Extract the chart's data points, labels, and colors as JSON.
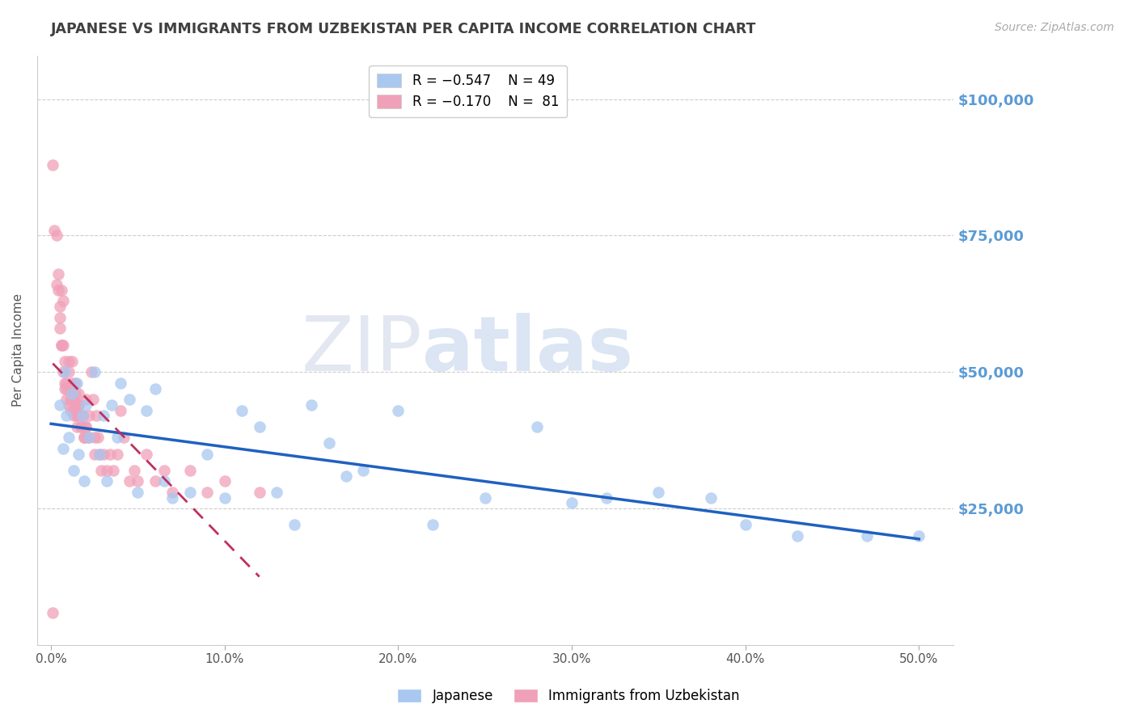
{
  "title": "JAPANESE VS IMMIGRANTS FROM UZBEKISTAN PER CAPITA INCOME CORRELATION CHART",
  "source": "Source: ZipAtlas.com",
  "ylabel": "Per Capita Income",
  "xlabel_ticks": [
    "0.0%",
    "10.0%",
    "20.0%",
    "30.0%",
    "40.0%",
    "50.0%"
  ],
  "xlabel_vals": [
    0.0,
    0.1,
    0.2,
    0.3,
    0.4,
    0.5
  ],
  "ylabel_ticks": [
    "$25,000",
    "$50,000",
    "$75,000",
    "$100,000"
  ],
  "ylabel_vals": [
    25000,
    50000,
    75000,
    100000
  ],
  "ylim": [
    0,
    108000
  ],
  "xlim": [
    -0.008,
    0.52
  ],
  "watermark_zip": "ZIP",
  "watermark_atlas": "atlas",
  "blue_color": "#A8C8F0",
  "pink_color": "#F0A0B8",
  "blue_line_color": "#2060C0",
  "pink_line_color": "#C03060",
  "background_color": "#FFFFFF",
  "grid_color": "#CCCCCC",
  "right_label_color": "#5B9BD5",
  "title_color": "#404040",
  "japanese_x": [
    0.005,
    0.007,
    0.008,
    0.009,
    0.01,
    0.012,
    0.013,
    0.015,
    0.016,
    0.018,
    0.019,
    0.02,
    0.022,
    0.025,
    0.028,
    0.03,
    0.032,
    0.035,
    0.038,
    0.04,
    0.045,
    0.05,
    0.055,
    0.06,
    0.065,
    0.07,
    0.08,
    0.09,
    0.1,
    0.11,
    0.12,
    0.13,
    0.14,
    0.15,
    0.16,
    0.17,
    0.18,
    0.2,
    0.22,
    0.25,
    0.28,
    0.3,
    0.32,
    0.35,
    0.38,
    0.4,
    0.43,
    0.47,
    0.5
  ],
  "japanese_y": [
    44000,
    36000,
    50000,
    42000,
    38000,
    46000,
    32000,
    48000,
    35000,
    42000,
    30000,
    44000,
    38000,
    50000,
    35000,
    42000,
    30000,
    44000,
    38000,
    48000,
    45000,
    28000,
    43000,
    47000,
    30000,
    27000,
    28000,
    35000,
    27000,
    43000,
    40000,
    28000,
    22000,
    44000,
    37000,
    31000,
    32000,
    43000,
    22000,
    27000,
    40000,
    26000,
    27000,
    28000,
    27000,
    22000,
    20000,
    20000,
    20000
  ],
  "uzbekistan_x": [
    0.001,
    0.002,
    0.003,
    0.004,
    0.005,
    0.005,
    0.006,
    0.006,
    0.007,
    0.007,
    0.008,
    0.008,
    0.009,
    0.009,
    0.01,
    0.01,
    0.011,
    0.011,
    0.012,
    0.012,
    0.013,
    0.013,
    0.014,
    0.014,
    0.015,
    0.015,
    0.016,
    0.016,
    0.017,
    0.018,
    0.019,
    0.02,
    0.02,
    0.021,
    0.022,
    0.023,
    0.024,
    0.025,
    0.026,
    0.027,
    0.028,
    0.029,
    0.03,
    0.032,
    0.034,
    0.036,
    0.038,
    0.04,
    0.042,
    0.045,
    0.048,
    0.05,
    0.055,
    0.06,
    0.065,
    0.07,
    0.08,
    0.09,
    0.1,
    0.12,
    0.003,
    0.004,
    0.005,
    0.006,
    0.007,
    0.008,
    0.009,
    0.01,
    0.011,
    0.012,
    0.013,
    0.014,
    0.015,
    0.016,
    0.017,
    0.018,
    0.019,
    0.02,
    0.022,
    0.025,
    0.001
  ],
  "uzbekistan_y": [
    88000,
    76000,
    66000,
    68000,
    62000,
    58000,
    65000,
    55000,
    63000,
    55000,
    52000,
    48000,
    47000,
    45000,
    50000,
    44000,
    43000,
    47000,
    52000,
    46000,
    42000,
    45000,
    48000,
    44000,
    42000,
    40000,
    46000,
    44000,
    40000,
    42000,
    38000,
    45000,
    40000,
    38000,
    42000,
    50000,
    45000,
    38000,
    42000,
    38000,
    35000,
    32000,
    35000,
    32000,
    35000,
    32000,
    35000,
    43000,
    38000,
    30000,
    32000,
    30000,
    35000,
    30000,
    32000,
    28000,
    32000,
    28000,
    30000,
    28000,
    75000,
    65000,
    60000,
    55000,
    50000,
    47000,
    48000,
    52000,
    45000,
    48000,
    43000,
    46000,
    42000,
    44000,
    40000,
    42000,
    38000,
    40000,
    38000,
    35000,
    6000
  ]
}
